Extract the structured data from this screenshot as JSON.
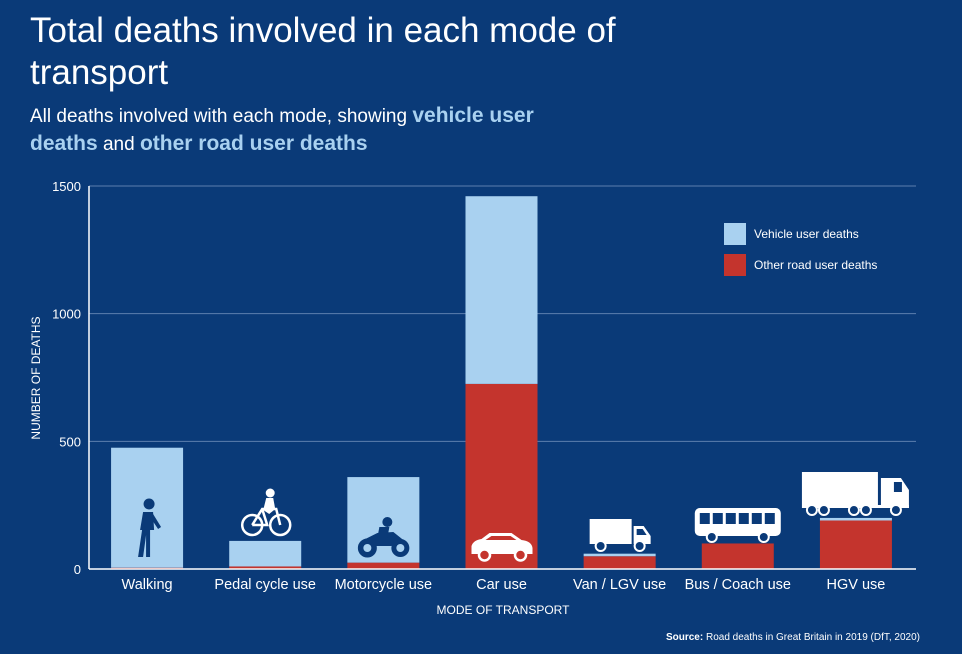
{
  "title": "Total deaths involved in each mode of transport",
  "subtitle": {
    "prefix": "All deaths involved with each mode, showing ",
    "highlight1": "vehicle user deaths",
    "middle": " and ",
    "highlight2": "other road user deaths"
  },
  "source": {
    "label": "Source:",
    "text": "Road deaths in Great Britain in 2019 (DfT, 2020)"
  },
  "colors": {
    "background": "#0a3a78",
    "vehicle": "#a9d1f0",
    "other": "#c4342d",
    "grid": "#5c7fae",
    "axis": "#ffffff"
  },
  "chart_data": {
    "type": "bar",
    "stacked": true,
    "categories": [
      "Walking",
      "Pedal cycle use",
      "Motorcycle use",
      "Car use",
      "Van / LGV use",
      "Bus / Coach use",
      "HGV use"
    ],
    "icons": [
      "pedestrian-icon",
      "bicycle-icon",
      "motorcycle-icon",
      "car-icon",
      "van-icon",
      "bus-icon",
      "truck-icon"
    ],
    "series": [
      {
        "name": "Other road user deaths",
        "color": "#c4342d",
        "values": [
          5,
          10,
          25,
          725,
          50,
          100,
          190
        ]
      },
      {
        "name": "Vehicle user deaths",
        "color": "#a9d1f0",
        "values": [
          470,
          100,
          335,
          735,
          10,
          0,
          10
        ]
      }
    ],
    "xlabel": "MODE OF TRANSPORT",
    "ylabel": "NUMBER OF DEATHS",
    "ylim": [
      0,
      1500
    ],
    "yticks": [
      0,
      500,
      1000,
      1500
    ],
    "grid": true,
    "legend": "top-right"
  }
}
